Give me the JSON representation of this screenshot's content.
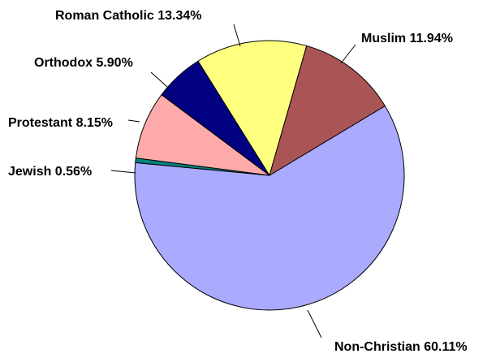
{
  "chart_data": {
    "type": "pie",
    "title": "",
    "legend": "none",
    "slices": [
      {
        "label": "Non-Christian 60.11%",
        "category": "Non-Christian",
        "value": 60.11,
        "color": "#aaaaff"
      },
      {
        "label": "Jewish 0.56%",
        "category": "Jewish",
        "value": 0.56,
        "color": "#008080"
      },
      {
        "label": "Protestant 8.15%",
        "category": "Protestant",
        "value": 8.15,
        "color": "#ffaaaa"
      },
      {
        "label": "Orthodox 5.90%",
        "category": "Orthodox",
        "value": 5.9,
        "color": "#000080"
      },
      {
        "label": "Roman Catholic 13.34%",
        "category": "Roman Catholic",
        "value": 13.34,
        "color": "#ffff80"
      },
      {
        "label": "Muslim 11.94%",
        "category": "Muslim",
        "value": 11.94,
        "color": "#aa5555"
      }
    ],
    "start_angle_deg": 31,
    "direction": "clockwise"
  }
}
